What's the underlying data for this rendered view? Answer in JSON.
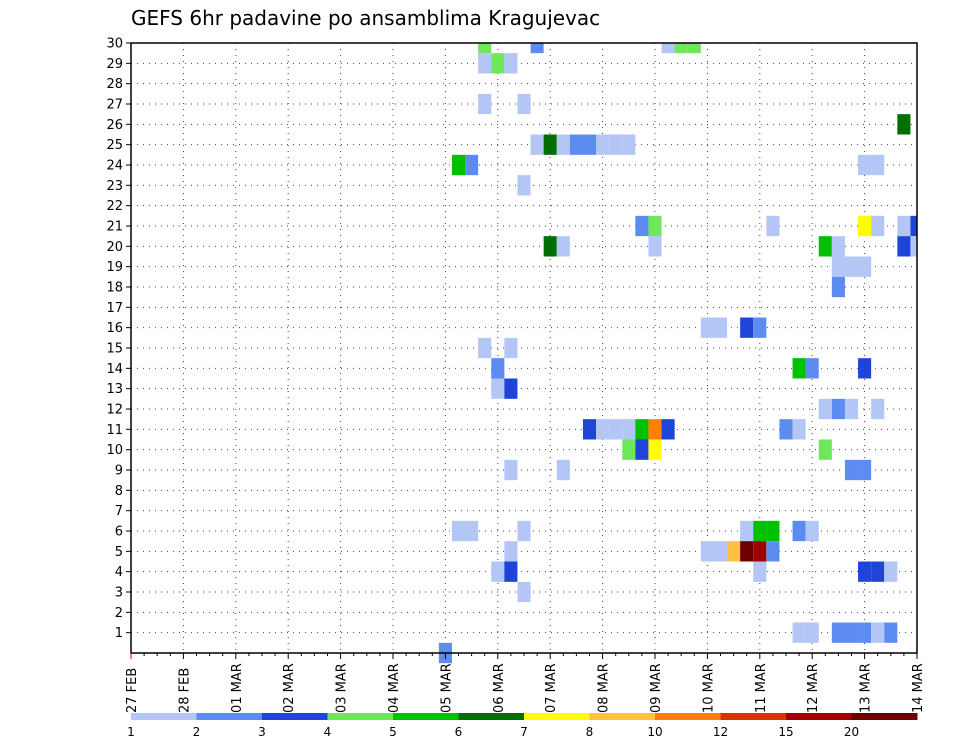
{
  "title": "GEFS 6hr padavine po ansamblima Kragujevac",
  "chart_data": {
    "type": "heatmap",
    "title": "GEFS 6hr padavine po ansamblima Kragujevac",
    "x_tick_labels": [
      "27 FEB",
      "28 FEB",
      "01 MAR",
      "02 MAR",
      "03 MAR",
      "04 MAR",
      "05 MAR",
      "06 MAR",
      "07 MAR",
      "08 MAR",
      "09 MAR",
      "10 MAR",
      "11 MAR",
      "12 MAR",
      "13 MAR",
      "14 MAR"
    ],
    "x_unit": "6-hour step (4 per day), starting 27 FEB",
    "y_tick_labels": [
      "1",
      "2",
      "3",
      "4",
      "5",
      "6",
      "7",
      "8",
      "9",
      "10",
      "11",
      "12",
      "13",
      "14",
      "15",
      "16",
      "17",
      "18",
      "19",
      "20",
      "21",
      "22",
      "23",
      "24",
      "25",
      "26",
      "27",
      "28",
      "29",
      "30"
    ],
    "ylim": [
      0,
      30
    ],
    "xlim": [
      0,
      60
    ],
    "grid": true,
    "colorbar": {
      "labels": [
        "1",
        "2",
        "3",
        "4",
        "5",
        "6",
        "7",
        "8",
        "10",
        "12",
        "15",
        "20"
      ],
      "colors": [
        "#b3c6f5",
        "#5c8cf0",
        "#1f45d8",
        "#6ee85a",
        "#00c000",
        "#006e00",
        "#ffff00",
        "#ffc044",
        "#ff8000",
        "#e03000",
        "#a00000",
        "#6e0000"
      ]
    },
    "cells": [
      {
        "x": 27,
        "y": 30,
        "c": 3
      },
      {
        "x": 31,
        "y": 30,
        "c": 1
      },
      {
        "x": 41,
        "y": 30,
        "c": 0
      },
      {
        "x": 42,
        "y": 30,
        "c": 3
      },
      {
        "x": 43,
        "y": 30,
        "c": 3
      },
      {
        "x": 27,
        "y": 29,
        "c": 0
      },
      {
        "x": 28,
        "y": 29,
        "c": 3
      },
      {
        "x": 29,
        "y": 29,
        "c": 0
      },
      {
        "x": 27,
        "y": 27,
        "c": 0
      },
      {
        "x": 30,
        "y": 27,
        "c": 0
      },
      {
        "x": 59,
        "y": 26,
        "c": 5
      },
      {
        "x": 31,
        "y": 25,
        "c": 0
      },
      {
        "x": 32,
        "y": 25,
        "c": 5
      },
      {
        "x": 33,
        "y": 25,
        "c": 0
      },
      {
        "x": 34,
        "y": 25,
        "c": 1
      },
      {
        "x": 35,
        "y": 25,
        "c": 1
      },
      {
        "x": 36,
        "y": 25,
        "c": 0
      },
      {
        "x": 37,
        "y": 25,
        "c": 0
      },
      {
        "x": 38,
        "y": 25,
        "c": 0
      },
      {
        "x": 25,
        "y": 24,
        "c": 4
      },
      {
        "x": 26,
        "y": 24,
        "c": 1
      },
      {
        "x": 56,
        "y": 24,
        "c": 0
      },
      {
        "x": 57,
        "y": 24,
        "c": 0
      },
      {
        "x": 30,
        "y": 23,
        "c": 0
      },
      {
        "x": 39,
        "y": 21,
        "c": 1
      },
      {
        "x": 40,
        "y": 21,
        "c": 3
      },
      {
        "x": 49,
        "y": 21,
        "c": 0
      },
      {
        "x": 56,
        "y": 21,
        "c": 6
      },
      {
        "x": 57,
        "y": 21,
        "c": 0
      },
      {
        "x": 59,
        "y": 21,
        "c": 0
      },
      {
        "x": 60,
        "y": 21,
        "c": 2
      },
      {
        "x": 32,
        "y": 20,
        "c": 5
      },
      {
        "x": 33,
        "y": 20,
        "c": 0
      },
      {
        "x": 40,
        "y": 20,
        "c": 0
      },
      {
        "x": 53,
        "y": 20,
        "c": 4
      },
      {
        "x": 54,
        "y": 20,
        "c": 0
      },
      {
        "x": 59,
        "y": 20,
        "c": 2
      },
      {
        "x": 60,
        "y": 20,
        "c": 0
      },
      {
        "x": 54,
        "y": 19,
        "c": 0
      },
      {
        "x": 55,
        "y": 19,
        "c": 0
      },
      {
        "x": 56,
        "y": 19,
        "c": 0
      },
      {
        "x": 54,
        "y": 18,
        "c": 1
      },
      {
        "x": 44,
        "y": 16,
        "c": 0
      },
      {
        "x": 45,
        "y": 16,
        "c": 0
      },
      {
        "x": 47,
        "y": 16,
        "c": 2
      },
      {
        "x": 48,
        "y": 16,
        "c": 1
      },
      {
        "x": 27,
        "y": 15,
        "c": 0
      },
      {
        "x": 29,
        "y": 15,
        "c": 0
      },
      {
        "x": 28,
        "y": 14,
        "c": 1
      },
      {
        "x": 51,
        "y": 14,
        "c": 4
      },
      {
        "x": 52,
        "y": 14,
        "c": 1
      },
      {
        "x": 56,
        "y": 14,
        "c": 2
      },
      {
        "x": 28,
        "y": 13,
        "c": 0
      },
      {
        "x": 29,
        "y": 13,
        "c": 2
      },
      {
        "x": 53,
        "y": 12,
        "c": 0
      },
      {
        "x": 54,
        "y": 12,
        "c": 1
      },
      {
        "x": 55,
        "y": 12,
        "c": 0
      },
      {
        "x": 57,
        "y": 12,
        "c": 0
      },
      {
        "x": 35,
        "y": 11,
        "c": 2
      },
      {
        "x": 36,
        "y": 11,
        "c": 0
      },
      {
        "x": 37,
        "y": 11,
        "c": 0
      },
      {
        "x": 38,
        "y": 11,
        "c": 0
      },
      {
        "x": 39,
        "y": 11,
        "c": 4
      },
      {
        "x": 40,
        "y": 11,
        "c": 8
      },
      {
        "x": 41,
        "y": 11,
        "c": 2
      },
      {
        "x": 50,
        "y": 11,
        "c": 1
      },
      {
        "x": 51,
        "y": 11,
        "c": 0
      },
      {
        "x": 38,
        "y": 10,
        "c": 3
      },
      {
        "x": 39,
        "y": 10,
        "c": 2
      },
      {
        "x": 40,
        "y": 10,
        "c": 6
      },
      {
        "x": 53,
        "y": 10,
        "c": 3
      },
      {
        "x": 29,
        "y": 9,
        "c": 0
      },
      {
        "x": 33,
        "y": 9,
        "c": 0
      },
      {
        "x": 55,
        "y": 9,
        "c": 1
      },
      {
        "x": 56,
        "y": 9,
        "c": 1
      },
      {
        "x": 25,
        "y": 6,
        "c": 0
      },
      {
        "x": 26,
        "y": 6,
        "c": 0
      },
      {
        "x": 30,
        "y": 6,
        "c": 0
      },
      {
        "x": 47,
        "y": 6,
        "c": 0
      },
      {
        "x": 48,
        "y": 6,
        "c": 4
      },
      {
        "x": 49,
        "y": 6,
        "c": 4
      },
      {
        "x": 51,
        "y": 6,
        "c": 1
      },
      {
        "x": 52,
        "y": 6,
        "c": 0
      },
      {
        "x": 29,
        "y": 5,
        "c": 0
      },
      {
        "x": 44,
        "y": 5,
        "c": 0
      },
      {
        "x": 45,
        "y": 5,
        "c": 0
      },
      {
        "x": 46,
        "y": 5,
        "c": 7
      },
      {
        "x": 47,
        "y": 5,
        "c": 11
      },
      {
        "x": 48,
        "y": 5,
        "c": 10
      },
      {
        "x": 49,
        "y": 5,
        "c": 1
      },
      {
        "x": 28,
        "y": 4,
        "c": 0
      },
      {
        "x": 29,
        "y": 4,
        "c": 2
      },
      {
        "x": 48,
        "y": 4,
        "c": 0
      },
      {
        "x": 56,
        "y": 4,
        "c": 2
      },
      {
        "x": 57,
        "y": 4,
        "c": 2
      },
      {
        "x": 58,
        "y": 4,
        "c": 0
      },
      {
        "x": 30,
        "y": 3,
        "c": 0
      },
      {
        "x": 51,
        "y": 1,
        "c": 0
      },
      {
        "x": 52,
        "y": 1,
        "c": 0
      },
      {
        "x": 54,
        "y": 1,
        "c": 1
      },
      {
        "x": 55,
        "y": 1,
        "c": 1
      },
      {
        "x": 56,
        "y": 1,
        "c": 1
      },
      {
        "x": 57,
        "y": 1,
        "c": 0
      },
      {
        "x": 58,
        "y": 1,
        "c": 1
      },
      {
        "x": 24,
        "y": 0,
        "c": 1
      }
    ]
  }
}
